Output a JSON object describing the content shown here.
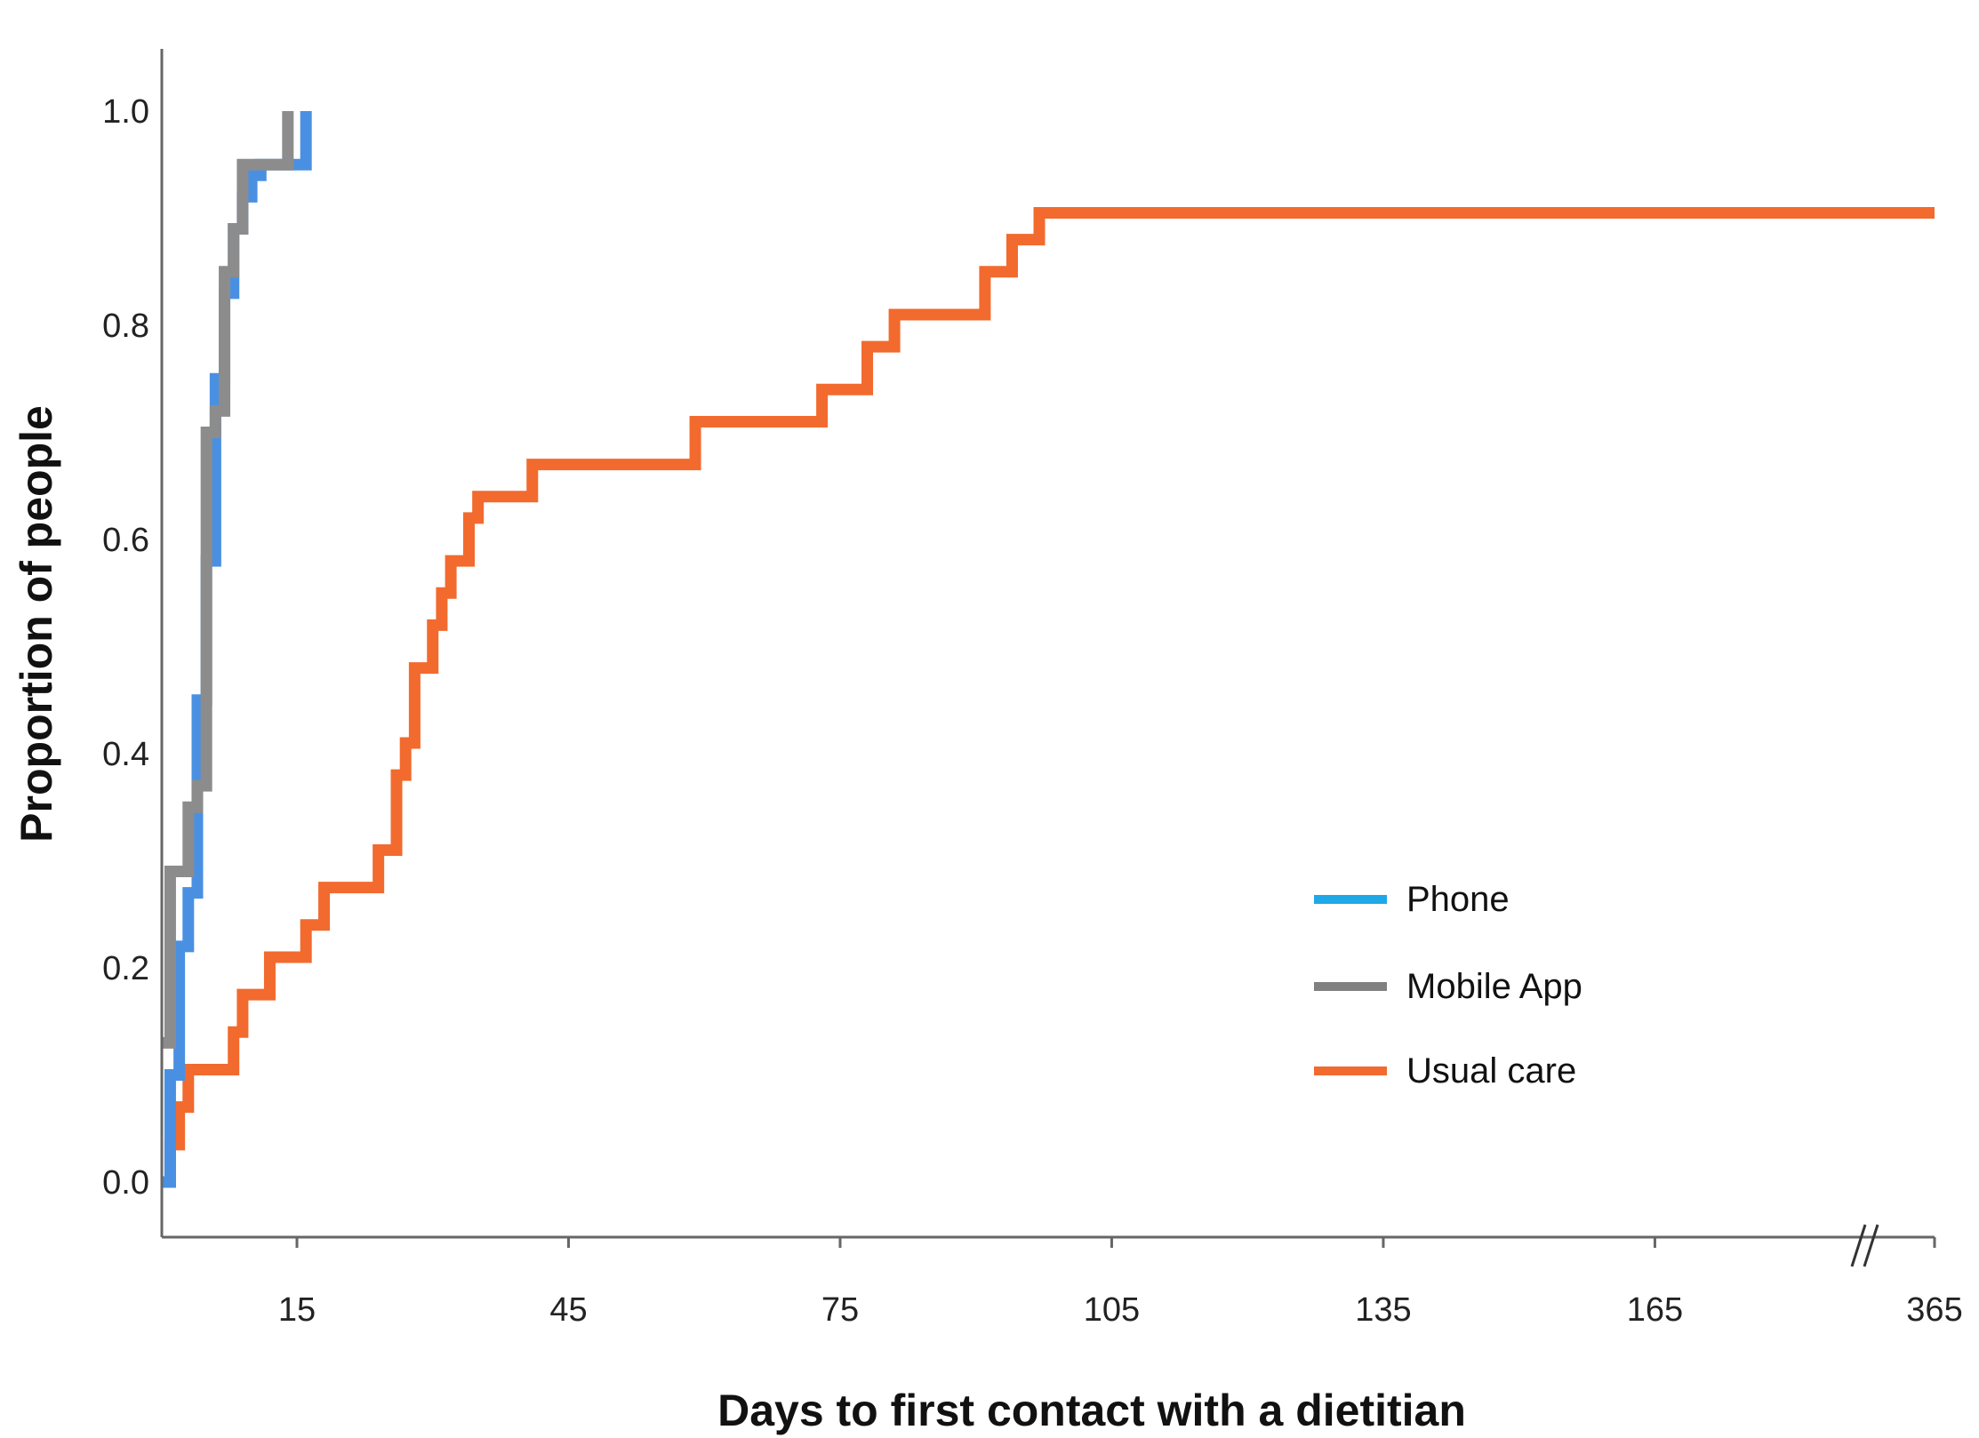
{
  "chart_data": {
    "type": "line",
    "step": true,
    "xlabel": "Days to first contact with a dietitian",
    "ylabel": "Proportion of people",
    "x_ticks": [
      "15",
      "45",
      "75",
      "105",
      "135",
      "165",
      "365"
    ],
    "y_ticks": [
      "0.0",
      "0.2",
      "0.4",
      "0.6",
      "0.8",
      "1.0"
    ],
    "xlim": [
      0,
      365
    ],
    "ylim": [
      0,
      1.0
    ],
    "axis_break": "between 165 and 365",
    "grid": false,
    "legend_position": "lower-right",
    "series": [
      {
        "name": "Phone",
        "color": "#4A90E2",
        "legend_color": "#1FA8E8",
        "x": [
          0,
          1,
          2,
          3,
          4,
          5,
          6,
          7,
          8,
          9,
          10,
          11,
          12,
          13,
          14,
          15,
          16
        ],
        "y": [
          0.0,
          0.1,
          0.22,
          0.27,
          0.45,
          0.58,
          0.75,
          0.83,
          0.89,
          0.92,
          0.94,
          0.95,
          0.95,
          0.95,
          0.95,
          0.95,
          1.0
        ]
      },
      {
        "name": "Mobile App",
        "color": "#8C8C8C",
        "legend_color": "#808080",
        "x": [
          0,
          1,
          2,
          3,
          4,
          5,
          6,
          7,
          8,
          9,
          10,
          11,
          12,
          13,
          14
        ],
        "y": [
          0.13,
          0.29,
          0.29,
          0.35,
          0.37,
          0.7,
          0.72,
          0.85,
          0.89,
          0.95,
          0.95,
          0.95,
          0.95,
          0.95,
          1.0
        ]
      },
      {
        "name": "Usual care",
        "color": "#F26A2E",
        "legend_color": "#F26A2E",
        "x": [
          0,
          1,
          2,
          3,
          8,
          9,
          12,
          16,
          18,
          24,
          26,
          27,
          28,
          30,
          31,
          32,
          34,
          35,
          41,
          59,
          73,
          78,
          81,
          91,
          94,
          97,
          365
        ],
        "y": [
          0.0,
          0.035,
          0.07,
          0.105,
          0.14,
          0.175,
          0.21,
          0.24,
          0.275,
          0.31,
          0.38,
          0.41,
          0.48,
          0.52,
          0.55,
          0.58,
          0.62,
          0.64,
          0.67,
          0.71,
          0.74,
          0.78,
          0.81,
          0.85,
          0.88,
          0.905,
          0.905
        ]
      }
    ]
  }
}
